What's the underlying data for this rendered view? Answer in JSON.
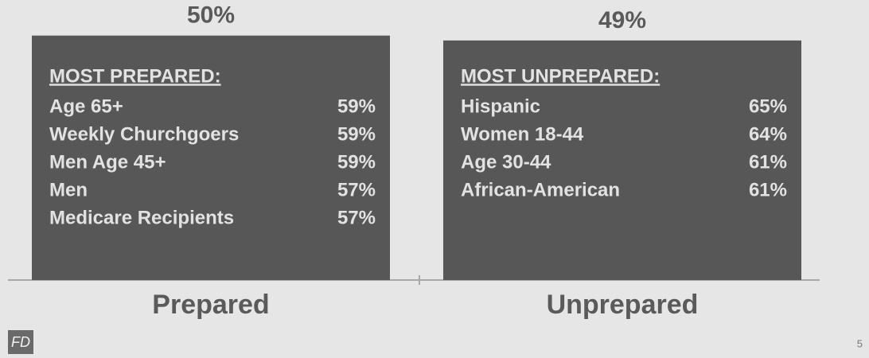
{
  "chart_data": {
    "type": "bar",
    "categories": [
      "Prepared",
      "Unprepared"
    ],
    "values": [
      50,
      49
    ],
    "value_labels": [
      "50%",
      "49%"
    ],
    "color": "#575757",
    "ylim": [
      0,
      55
    ],
    "boxes": [
      {
        "heading": "MOST PREPARED:",
        "items": [
          [
            "Age 65+",
            "59%"
          ],
          [
            "Weekly Churchgoers",
            "59%"
          ],
          [
            "Men Age 45+",
            "59%"
          ],
          [
            "Men",
            "57%"
          ],
          [
            "Medicare Recipients",
            "57%"
          ]
        ]
      },
      {
        "heading": "MOST UNPREPARED:",
        "items": [
          [
            "Hispanic",
            "65%"
          ],
          [
            "Women 18-44",
            "64%"
          ],
          [
            "Age 30-44",
            "61%"
          ],
          [
            "African-American",
            "61%"
          ]
        ]
      }
    ]
  },
  "footer": {
    "logo": "FD",
    "page": "5"
  }
}
